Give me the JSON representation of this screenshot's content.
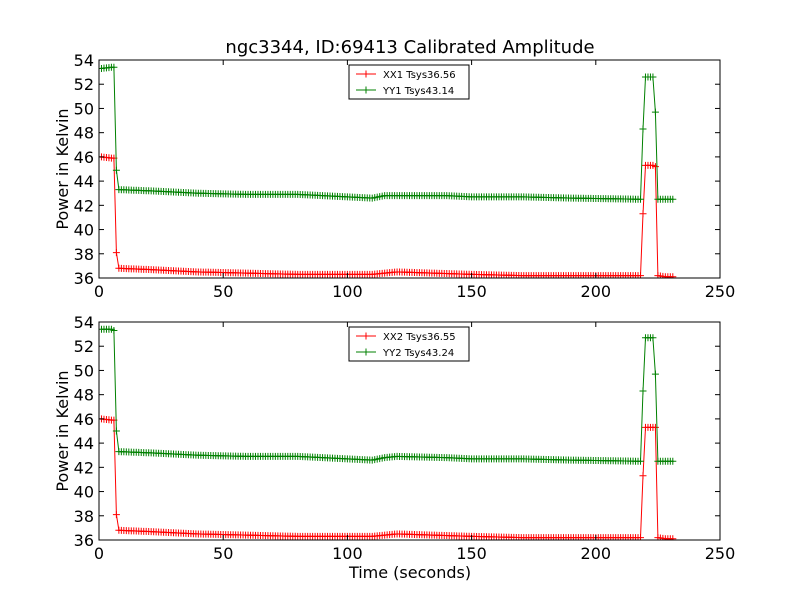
{
  "figure": {
    "title": "ngc3344, ID:69413 Calibrated Amplitude",
    "xlabel": "Time (seconds)"
  },
  "chart_data": [
    {
      "type": "line",
      "title": "ngc3344, ID:69413 Calibrated Amplitude",
      "xlabel": "",
      "ylabel": "Power in Kelvin",
      "xlim": [
        0,
        250
      ],
      "ylim": [
        36,
        54
      ],
      "xticks": [
        "0",
        "50",
        "100",
        "150",
        "200",
        "250"
      ],
      "yticks": [
        "36",
        "38",
        "40",
        "42",
        "44",
        "46",
        "48",
        "50",
        "52",
        "54"
      ],
      "grid": false,
      "legend_position": "top-center",
      "marker": "+",
      "series": [
        {
          "name": "XX1 Tsys36.56",
          "color": "#ff0000",
          "key": [
            [
              1,
              46.0
            ],
            [
              5,
              45.9
            ],
            [
              6,
              45.9
            ],
            [
              7,
              38.1
            ],
            [
              8,
              36.8
            ],
            [
              20,
              36.7
            ],
            [
              40,
              36.5
            ],
            [
              60,
              36.4
            ],
            [
              80,
              36.3
            ],
            [
              100,
              36.3
            ],
            [
              110,
              36.3
            ],
            [
              115,
              36.4
            ],
            [
              120,
              36.5
            ],
            [
              135,
              36.4
            ],
            [
              150,
              36.3
            ],
            [
              170,
              36.2
            ],
            [
              190,
              36.2
            ],
            [
              218,
              36.2
            ],
            [
              219,
              41.3
            ],
            [
              220,
              45.3
            ],
            [
              223,
              45.3
            ],
            [
              224,
              45.2
            ],
            [
              225,
              36.2
            ],
            [
              228,
              36.1
            ],
            [
              231,
              36.1
            ]
          ]
        },
        {
          "name": "YY1 Tsys43.14",
          "color": "#008000",
          "key": [
            [
              1,
              53.3
            ],
            [
              5,
              53.4
            ],
            [
              6,
              53.4
            ],
            [
              7,
              44.9
            ],
            [
              8,
              43.3
            ],
            [
              20,
              43.2
            ],
            [
              40,
              43.0
            ],
            [
              60,
              42.9
            ],
            [
              80,
              42.9
            ],
            [
              100,
              42.7
            ],
            [
              110,
              42.6
            ],
            [
              115,
              42.8
            ],
            [
              120,
              42.8
            ],
            [
              140,
              42.8
            ],
            [
              150,
              42.7
            ],
            [
              170,
              42.7
            ],
            [
              190,
              42.6
            ],
            [
              218,
              42.5
            ],
            [
              219,
              48.3
            ],
            [
              220,
              52.6
            ],
            [
              223,
              52.6
            ],
            [
              224,
              49.7
            ],
            [
              225,
              42.5
            ],
            [
              228,
              42.5
            ],
            [
              231,
              42.5
            ]
          ]
        }
      ]
    },
    {
      "type": "line",
      "title": "",
      "xlabel": "Time (seconds)",
      "ylabel": "Power in Kelvin",
      "xlim": [
        0,
        250
      ],
      "ylim": [
        36,
        54
      ],
      "xticks": [
        "0",
        "50",
        "100",
        "150",
        "200",
        "250"
      ],
      "yticks": [
        "36",
        "38",
        "40",
        "42",
        "44",
        "46",
        "48",
        "50",
        "52",
        "54"
      ],
      "grid": false,
      "legend_position": "top-center",
      "marker": "+",
      "series": [
        {
          "name": "XX2 Tsys36.55",
          "color": "#ff0000",
          "key": [
            [
              1,
              46.0
            ],
            [
              5,
              45.9
            ],
            [
              6,
              45.9
            ],
            [
              7,
              38.1
            ],
            [
              8,
              36.8
            ],
            [
              20,
              36.7
            ],
            [
              40,
              36.5
            ],
            [
              60,
              36.4
            ],
            [
              80,
              36.3
            ],
            [
              100,
              36.3
            ],
            [
              110,
              36.3
            ],
            [
              115,
              36.4
            ],
            [
              120,
              36.5
            ],
            [
              135,
              36.4
            ],
            [
              150,
              36.3
            ],
            [
              170,
              36.2
            ],
            [
              190,
              36.2
            ],
            [
              218,
              36.2
            ],
            [
              219,
              41.3
            ],
            [
              220,
              45.3
            ],
            [
              223,
              45.3
            ],
            [
              224,
              45.3
            ],
            [
              225,
              36.2
            ],
            [
              228,
              36.1
            ],
            [
              231,
              36.1
            ]
          ]
        },
        {
          "name": "YY2 Tsys43.24",
          "color": "#008000",
          "key": [
            [
              1,
              53.4
            ],
            [
              5,
              53.4
            ],
            [
              6,
              53.3
            ],
            [
              7,
              45.0
            ],
            [
              8,
              43.3
            ],
            [
              20,
              43.2
            ],
            [
              40,
              43.0
            ],
            [
              60,
              42.9
            ],
            [
              80,
              42.9
            ],
            [
              100,
              42.7
            ],
            [
              110,
              42.6
            ],
            [
              115,
              42.8
            ],
            [
              120,
              42.9
            ],
            [
              140,
              42.8
            ],
            [
              150,
              42.7
            ],
            [
              170,
              42.7
            ],
            [
              190,
              42.6
            ],
            [
              218,
              42.5
            ],
            [
              219,
              48.3
            ],
            [
              220,
              52.7
            ],
            [
              223,
              52.7
            ],
            [
              224,
              49.7
            ],
            [
              225,
              42.5
            ],
            [
              228,
              42.5
            ],
            [
              231,
              42.5
            ]
          ]
        }
      ]
    }
  ]
}
